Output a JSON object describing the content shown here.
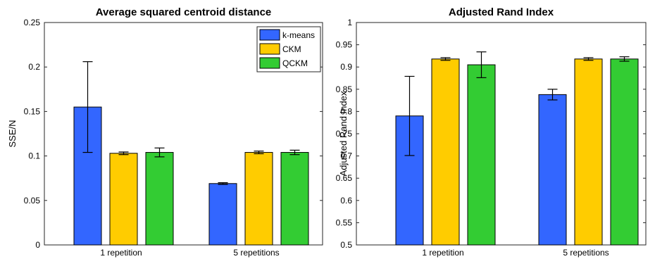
{
  "chart_data": [
    {
      "type": "bar",
      "title": "Average squared centroid distance",
      "xlabel": "",
      "ylabel": "SSE/N",
      "ylim": [
        0,
        0.25
      ],
      "yticks": [
        0,
        0.05,
        0.1,
        0.15,
        0.2,
        0.25
      ],
      "ytick_labels": [
        "0",
        "0.05",
        "0.1",
        "0.15",
        "0.2",
        "0.25"
      ],
      "categories": [
        "1 repetition",
        "5 repetitions"
      ],
      "grid": false,
      "legend_position": "top-right",
      "series": [
        {
          "name": "k-means",
          "color": "#3366ff",
          "values": [
            0.155,
            0.069
          ],
          "errors": [
            0.051,
            0.001
          ]
        },
        {
          "name": "CKM",
          "color": "#ffcc00",
          "values": [
            0.103,
            0.104
          ],
          "errors": [
            0.0015,
            0.0015
          ]
        },
        {
          "name": "QCKM",
          "color": "#33cc33",
          "values": [
            0.104,
            0.104
          ],
          "errors": [
            0.005,
            0.0025
          ]
        }
      ]
    },
    {
      "type": "bar",
      "title": "Adjusted Rand Index",
      "xlabel": "",
      "ylabel": "Adjusted Rand Index",
      "ylim": [
        0.5,
        1
      ],
      "yticks": [
        0.5,
        0.55,
        0.6,
        0.65,
        0.7,
        0.75,
        0.8,
        0.85,
        0.9,
        0.95,
        1
      ],
      "ytick_labels": [
        "0.5",
        "0.55",
        "0.6",
        "0.65",
        "0.7",
        "0.75",
        "0.8",
        "0.85",
        "0.9",
        "0.95",
        "1"
      ],
      "categories": [
        "1 repetition",
        "5 repetitions"
      ],
      "grid": false,
      "legend_position": "none",
      "series": [
        {
          "name": "k-means",
          "color": "#3366ff",
          "values": [
            0.79,
            0.838
          ],
          "errors": [
            0.089,
            0.012
          ]
        },
        {
          "name": "CKM",
          "color": "#ffcc00",
          "values": [
            0.918,
            0.918
          ],
          "errors": [
            0.003,
            0.003
          ]
        },
        {
          "name": "QCKM",
          "color": "#33cc33",
          "values": [
            0.905,
            0.918
          ],
          "errors": [
            0.029,
            0.005
          ]
        }
      ]
    }
  ]
}
